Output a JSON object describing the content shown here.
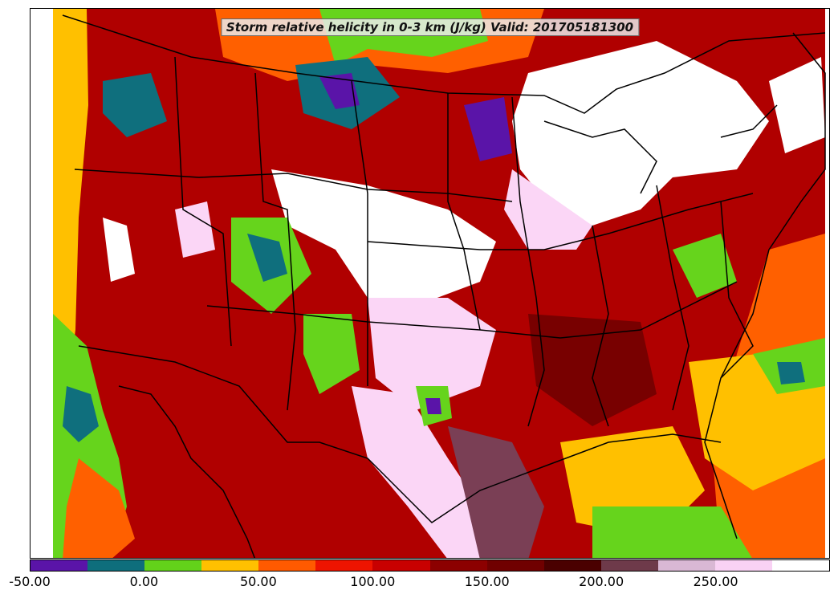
{
  "title": "Storm relative helicity in 0-3 km (J/kg) Valid: 201705181300",
  "colorbar": {
    "colors": [
      "#5a14a8",
      "#0e6e7c",
      "#63d21a",
      "#ffc000",
      "#ff5a00",
      "#ee1400",
      "#c80000",
      "#8c0000",
      "#700000",
      "#4a0000",
      "#6e3a4a",
      "#d9b8d4",
      "#f9d2f4",
      "#ffffff"
    ],
    "ticks": [
      "-50.00",
      "0.00",
      "50.00",
      "100.00",
      "150.00",
      "200.00",
      "250.00"
    ]
  },
  "map": {
    "colors": {
      "background": "#b00000",
      "dark": "#780000",
      "red": "#e81800",
      "orange": "#ff6000",
      "yellow": "#ffc000",
      "green": "#66d41c",
      "teal": "#0f6f7d",
      "purple": "#5a14a8",
      "pink": "#fbd6f6",
      "mauve": "#7a3f55",
      "white": "#ffffff",
      "lines": "#000000"
    }
  }
}
